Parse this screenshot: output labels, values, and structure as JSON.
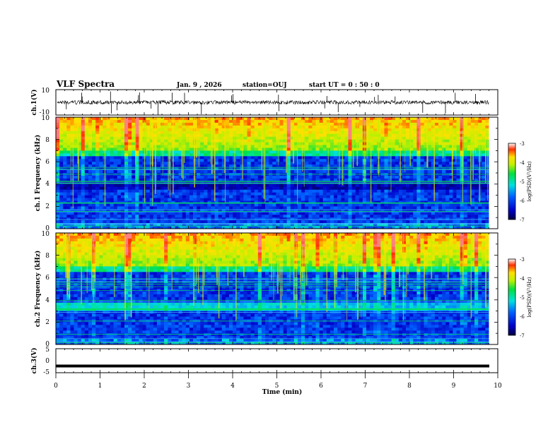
{
  "header": {
    "title": "VLF Spectra",
    "date": "Jan. 9 , 2026",
    "station": "station=OUJ",
    "start": "start UT =  0 : 50 : 0"
  },
  "chart_data": [
    {
      "type": "line",
      "name": "ch1-waveform",
      "ylabel": "ch.1(V)",
      "ylim": [
        -10,
        10
      ],
      "yticks": [
        "10",
        "-10"
      ],
      "xlim": [
        0,
        10
      ],
      "baseline": 0,
      "note": "dense noise waveform around 0 V with short spikes"
    },
    {
      "type": "heatmap",
      "name": "ch1-spectrogram",
      "ylabel": "ch.1 Frequency (kHz)",
      "ylim": [
        0,
        10
      ],
      "yticks": [
        "0",
        "2",
        "4",
        "6",
        "8",
        "10"
      ],
      "xlim": [
        0,
        9.8
      ],
      "colorbar": {
        "label": "log(PSD)(V²/Hz)",
        "range": [
          -7,
          -3
        ],
        "ticks": [
          "-3",
          "-4",
          "-5",
          "-6",
          "-7"
        ]
      },
      "band_structure_khz": {
        "low_noise_top": 6.5,
        "high_activity_from": 7
      }
    },
    {
      "type": "heatmap",
      "name": "ch2-spectrogram",
      "ylabel": "ch.2 Frequency (kHz)",
      "ylim": [
        0,
        10
      ],
      "yticks": [
        "0",
        "2",
        "4",
        "6",
        "8",
        "10"
      ],
      "xlim": [
        0,
        9.8
      ],
      "colorbar": {
        "label": "log(PSD)(V²/Hz)",
        "range": [
          -7,
          -3
        ],
        "ticks": [
          "-3",
          "-4",
          "-5",
          "-6",
          "-7"
        ]
      },
      "band_structure_khz": {
        "enhanced_band": [
          3,
          3.6
        ],
        "high_activity_from": 7
      }
    },
    {
      "type": "line",
      "name": "ch3-waveform",
      "ylabel": "ch.3(V)",
      "ylim": [
        -5,
        5
      ],
      "yticks": [
        "5",
        "0",
        "-5"
      ],
      "xlim": [
        0,
        10
      ],
      "constant_value": -2.2
    }
  ],
  "x_axis": {
    "label": "Time (min)",
    "ticks": [
      "0",
      "1",
      "2",
      "3",
      "4",
      "5",
      "6",
      "7",
      "8",
      "9",
      "10"
    ]
  }
}
